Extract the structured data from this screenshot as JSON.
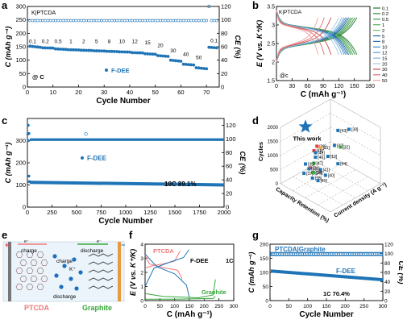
{
  "panels": {
    "a": {
      "letter": "a",
      "tag": "K|PTCDA"
    },
    "b": {
      "letter": "b",
      "tag": "K|PTCDA"
    },
    "c": {
      "letter": "c"
    },
    "d": {
      "letter": "d"
    },
    "e": {
      "letter": "e"
    },
    "f": {
      "letter": "f"
    },
    "g": {
      "letter": "g"
    }
  },
  "colors": {
    "blue": "#1e74b6",
    "red": "#e63c3c",
    "green": "#37a83a",
    "pink": "#f07a7a",
    "orange": "#f0a040",
    "darkgreen": "#1d7a2a"
  },
  "chart_data": [
    {
      "id": "a",
      "type": "scatter",
      "xlabel": "Cycle Number",
      "ylabel": "C (mAh g⁻¹)",
      "y2label": "CE (%)",
      "xlim": [
        0,
        75
      ],
      "ylim": [
        0,
        300
      ],
      "y2lim": [
        0,
        120
      ],
      "xticks": [
        0,
        10,
        20,
        30,
        40,
        50,
        60,
        70
      ],
      "yticks": [
        0,
        50,
        100,
        150,
        200,
        250,
        300
      ],
      "y2ticks": [
        0,
        20,
        40,
        60,
        80,
        100,
        120
      ],
      "legend": "F-DEE",
      "rate_note": "@ C",
      "rate_labels": [
        {
          "text": "0.1",
          "x": 2,
          "y": 155
        },
        {
          "text": "0.2",
          "x": 7,
          "y": 155
        },
        {
          "text": "0.5",
          "x": 12,
          "y": 155
        },
        {
          "text": "1",
          "x": 17,
          "y": 155
        },
        {
          "text": "2",
          "x": 22,
          "y": 155
        },
        {
          "text": "5",
          "x": 27,
          "y": 155
        },
        {
          "text": "8",
          "x": 32,
          "y": 155
        },
        {
          "text": "10",
          "x": 37,
          "y": 155
        },
        {
          "text": "12",
          "x": 42,
          "y": 155
        },
        {
          "text": "15",
          "x": 47,
          "y": 150
        },
        {
          "text": "20",
          "x": 52,
          "y": 140
        },
        {
          "text": "30",
          "x": 57,
          "y": 120
        },
        {
          "text": "40",
          "x": 62,
          "y": 107
        },
        {
          "text": "50",
          "x": 67,
          "y": 95
        },
        {
          "text": "0.1",
          "x": 73,
          "y": 158
        }
      ],
      "capacity_blocks": [
        {
          "from": 1,
          "to": 5,
          "c0": 152,
          "c1": 148
        },
        {
          "from": 6,
          "to": 10,
          "c0": 146,
          "c1": 145
        },
        {
          "from": 11,
          "to": 15,
          "c0": 142,
          "c1": 140
        },
        {
          "from": 16,
          "to": 20,
          "c0": 139,
          "c1": 138
        },
        {
          "from": 21,
          "to": 25,
          "c0": 137,
          "c1": 136
        },
        {
          "from": 26,
          "to": 30,
          "c0": 135,
          "c1": 134
        },
        {
          "from": 31,
          "to": 35,
          "c0": 133,
          "c1": 132
        },
        {
          "from": 36,
          "to": 40,
          "c0": 131,
          "c1": 130
        },
        {
          "from": 41,
          "to": 45,
          "c0": 128,
          "c1": 127
        },
        {
          "from": 46,
          "to": 50,
          "c0": 124,
          "c1": 122
        },
        {
          "from": 51,
          "to": 55,
          "c0": 117,
          "c1": 114
        },
        {
          "from": 56,
          "to": 60,
          "c0": 100,
          "c1": 96
        },
        {
          "from": 61,
          "to": 65,
          "c0": 85,
          "c1": 82
        },
        {
          "from": 66,
          "to": 70,
          "c0": 72,
          "c1": 68
        },
        {
          "from": 71,
          "to": 74,
          "c0": 148,
          "c1": 146
        }
      ],
      "ce_level": 99,
      "ce_spike": {
        "x": 71,
        "y": 120
      }
    },
    {
      "id": "b",
      "type": "line",
      "xlabel": "C (mAh g⁻¹)",
      "ylabel": "E (V vs. K⁺/K)",
      "xlim": [
        0,
        180
      ],
      "ylim": [
        1.5,
        3.5
      ],
      "xticks": [
        0,
        30,
        60,
        90,
        120,
        150,
        180
      ],
      "yticks": [
        1.5,
        2.0,
        2.5,
        3.0,
        3.5
      ],
      "rate_note": "@c",
      "series": [
        {
          "name": "0.1",
          "color": "#1d7a2a",
          "cap": 155
        },
        {
          "name": "0.2",
          "color": "#2e8b3a",
          "cap": 151
        },
        {
          "name": "0.5",
          "color": "#3f9d4a",
          "cap": 147
        },
        {
          "name": "1",
          "color": "#55ae5c",
          "cap": 144
        },
        {
          "name": "2",
          "color": "#6ebf72",
          "cap": 142
        },
        {
          "name": "5",
          "color": "#1e5fa0",
          "cap": 139
        },
        {
          "name": "8",
          "color": "#2c74b6",
          "cap": 136
        },
        {
          "name": "10",
          "color": "#4189c6",
          "cap": 133
        },
        {
          "name": "12",
          "color": "#5c9ed2",
          "cap": 130
        },
        {
          "name": "15",
          "color": "#7bb3dd",
          "cap": 126
        },
        {
          "name": "20",
          "color": "#a8c8e6",
          "cap": 120
        },
        {
          "name": "30",
          "color": "#c84a4a",
          "cap": 105
        },
        {
          "name": "40",
          "color": "#dd7070",
          "cap": 92
        },
        {
          "name": "50",
          "color": "#f0a0a0",
          "cap": 80
        }
      ]
    },
    {
      "id": "c",
      "type": "scatter",
      "xlabel": "Cycle Number",
      "ylabel": "C (mAh g⁻¹)",
      "y2label": "CE (%)",
      "xlim": [
        0,
        2000
      ],
      "ylim": [
        0,
        400
      ],
      "y2lim": [
        0,
        130
      ],
      "xticks": [
        0,
        250,
        500,
        750,
        1000,
        1250,
        1500,
        1750,
        2000
      ],
      "yticks": [
        0,
        100,
        200,
        300
      ],
      "y2ticks": [
        0,
        20,
        40,
        60,
        80,
        100,
        120
      ],
      "legend": "F-DEE",
      "annotation": "10C    89.1%",
      "capacity_start": 112,
      "capacity_end": 100,
      "ce_level": 99,
      "initial_capacity_points": [
        [
          5,
          330
        ],
        [
          10,
          300
        ],
        [
          15,
          140
        ],
        [
          20,
          115
        ]
      ]
    },
    {
      "id": "d",
      "type": "scatter",
      "zlabel": "Cycles",
      "xlabel": "Capacity Retention (%)",
      "ylabel": "Current density (A g⁻¹)",
      "zticks": [
        0,
        500,
        1000,
        1500,
        2000
      ],
      "this_work": "This work",
      "refs": [
        "[43]",
        "[39]",
        "[42]",
        "[32]",
        "[20]",
        "[21]",
        "[48]",
        "[45]",
        "[19]",
        "[46]",
        "[44]",
        "[41]",
        "[40]",
        "[47]",
        "[35]",
        "[31]",
        "[36]",
        "[37]",
        "[34]",
        "[33]",
        "[38]",
        "[40]"
      ]
    },
    {
      "id": "f",
      "type": "line",
      "xlabel": "C (mAh g⁻¹)",
      "ylabel": "E (V vs. K⁺/K)",
      "xlim": [
        0,
        300
      ],
      "ylim": [
        0,
        4
      ],
      "xticks": [
        0,
        50,
        100,
        150,
        200,
        250,
        300
      ],
      "yticks": [
        0,
        1,
        2,
        3,
        4
      ],
      "series": [
        {
          "name": "PTCDA",
          "color": "#f07a7a"
        },
        {
          "name": "F-DEE",
          "color": "#1e74b6"
        },
        {
          "name": "Graphite",
          "color": "#37a83a"
        }
      ],
      "rate": "1C"
    },
    {
      "id": "g",
      "type": "scatter",
      "xlabel": "Cycle Number",
      "ylabel": "C (mAh g⁻¹)",
      "y2label": "CE (%)",
      "xlim": [
        0,
        300
      ],
      "ylim": [
        0,
        200
      ],
      "y2lim": [
        0,
        120
      ],
      "xticks": [
        0,
        50,
        100,
        150,
        200,
        250,
        300
      ],
      "yticks": [
        0,
        50,
        100,
        150,
        200
      ],
      "y2ticks": [
        0,
        20,
        40,
        60,
        80,
        100,
        120
      ],
      "title": "PTCDA|Graphite",
      "legend": "F-DEE",
      "annotation": "1C    70.4%",
      "capacity_start": 105,
      "capacity_end": 74,
      "ce_level": 99
    }
  ],
  "schematic": {
    "left_label": "PTCDA",
    "right_label": "Graphite",
    "ion": "K⁺",
    "electron": "e⁻",
    "arrows": [
      {
        "text": "charge",
        "pos": "top-left"
      },
      {
        "text": "discharge",
        "pos": "top-right"
      },
      {
        "text": "charge",
        "pos": "mid-top"
      },
      {
        "text": "discharge",
        "pos": "mid-bottom"
      }
    ],
    "plus": "+",
    "minus": "−"
  }
}
